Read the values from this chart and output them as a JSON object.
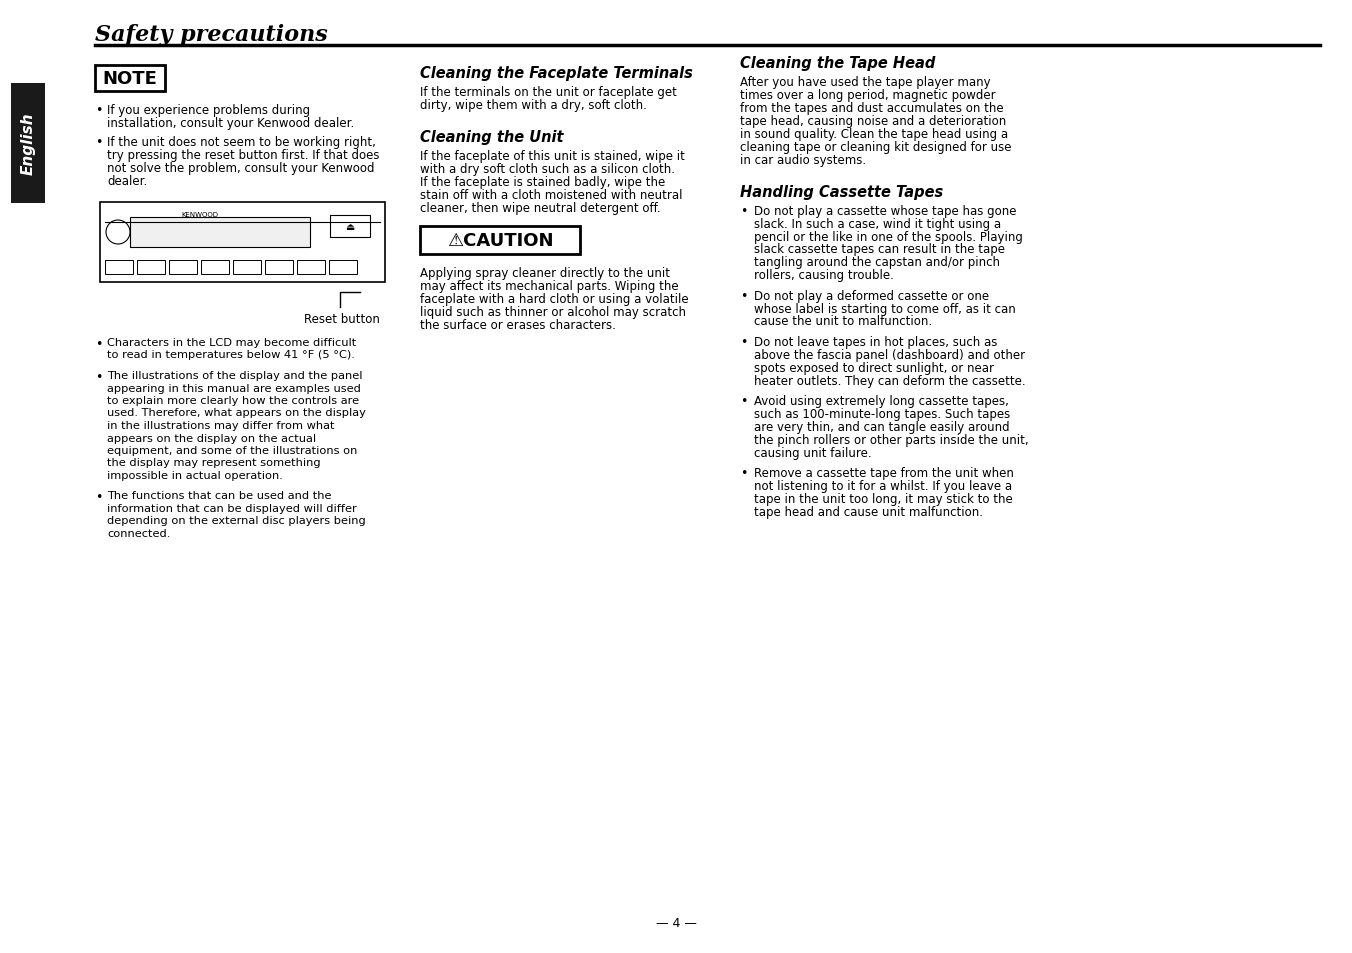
{
  "page_bg": "#ffffff",
  "title": "Safety precautions",
  "sidebar_bg": "#1a1a1a",
  "sidebar_text": "English",
  "header_line_color": "#000000",
  "footer_text": "— 4 —",
  "col1": {
    "note_box_text": "NOTE",
    "bullets": [
      "If you experience problems during\ninstallation, consult your Kenwood dealer.",
      "If the unit does not seem to be working right,\ntry pressing the reset button first. If that does\nnot solve the problem, consult your Kenwood\ndealer."
    ],
    "reset_label": "Reset button",
    "bullets2": [
      "Characters in the LCD may become difficult\nto read in temperatures below 41 °F (5 °C).",
      "The illustrations of the display and the panel\nappearing in this manual are examples used\nto explain more clearly how the controls are\nused. Therefore, what appears on the display\nin the illustrations may differ from what\nappears on the display on the actual\nequipment, and some of the illustrations on\nthe display may represent something\nimpossible in actual operation.",
      "The functions that can be used and the\ninformation that can be displayed will differ\ndepending on the external disc players being\nconnected."
    ]
  },
  "col2": {
    "section1_title": "Cleaning the Faceplate Terminals",
    "section1_body": "If the terminals on the unit or faceplate get\ndirty, wipe them with a dry, soft cloth.",
    "section2_title": "Cleaning the Unit",
    "section2_body": "If the faceplate of this unit is stained, wipe it\nwith a dry soft cloth such as a silicon cloth.\nIf the faceplate is stained badly, wipe the\nstain off with a cloth moistened with neutral\ncleaner, then wipe neutral detergent off.",
    "caution_box_text": "⚠CAUTION",
    "caution_body": "Applying spray cleaner directly to the unit\nmay affect its mechanical parts. Wiping the\nfaceplate with a hard cloth or using a volatile\nliquid such as thinner or alcohol may scratch\nthe surface or erases characters."
  },
  "col3": {
    "section3_title": "Cleaning the Tape Head",
    "section3_body": "After you have used the tape player many\ntimes over a long period, magnetic powder\nfrom the tapes and dust accumulates on the\ntape head, causing noise and a deterioration\nin sound quality. Clean the tape head using a\ncleaning tape or cleaning kit designed for use\nin car audio systems.",
    "section4_title": "Handling Cassette Tapes",
    "section4_bullets": [
      "Do not play a cassette whose tape has gone\nslack. In such a case, wind it tight using a\npencil or the like in one of the spools. Playing\nslack cassette tapes can result in the tape\ntangling around the capstan and/or pinch\nrollers, causing trouble.",
      "Do not play a deformed cassette or one\nwhose label is starting to come off, as it can\ncause the unit to malfunction.",
      "Do not leave tapes in hot places, such as\nabove the fascia panel (dashboard) and other\nspots exposed to direct sunlight, or near\nheater outlets. They can deform the cassette.",
      "Avoid using extremely long cassette tapes,\nsuch as 100-minute-long tapes. Such tapes\nare very thin, and can tangle easily around\nthe pinch rollers or other parts inside the unit,\ncausing unit failure.",
      "Remove a cassette tape from the unit when\nnot listening to it for a whilst. If you leave a\ntape in the unit too long, it may stick to the\ntape head and cause unit malfunction."
    ]
  }
}
